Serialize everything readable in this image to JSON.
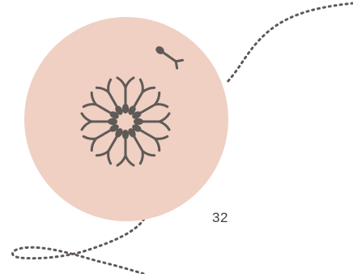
{
  "page": {
    "number": "32"
  },
  "illustration": {
    "icon": "sperm-rosette-icon",
    "background_color": "#efd0c2",
    "line_color": "#5f5a57"
  }
}
